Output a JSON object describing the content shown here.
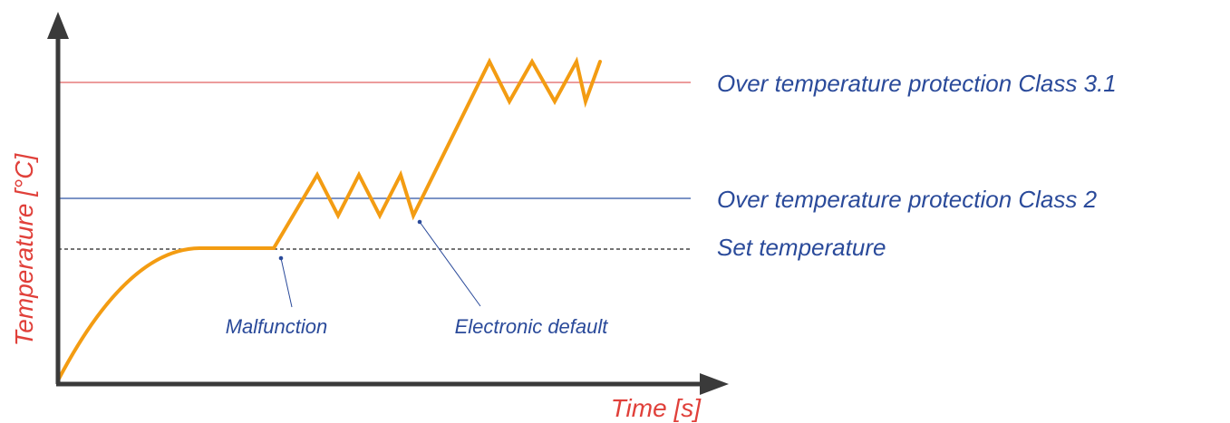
{
  "colors": {
    "axis": "#3a3a3a",
    "temperature_curve": "#f39c12",
    "class_3_1_line": "#e06060",
    "class_2_line": "#2f55a4",
    "set_temperature_line": "#222222",
    "axis_label": "#e0403a",
    "line_label": "#2a4a9a",
    "callout_label": "#2a4a9a"
  },
  "axes": {
    "y_label": "Temperature [°C]",
    "x_label": "Time [s]"
  },
  "threshold_lines": [
    {
      "label": "Over temperature protection Class 3.1",
      "style": "solid"
    },
    {
      "label": "Over temperature protection Class 2",
      "style": "solid"
    },
    {
      "label": "Set temperature",
      "style": "dashed"
    }
  ],
  "callouts": {
    "malfunction": "Malfunction",
    "electronic_default": "Electronic default"
  }
}
